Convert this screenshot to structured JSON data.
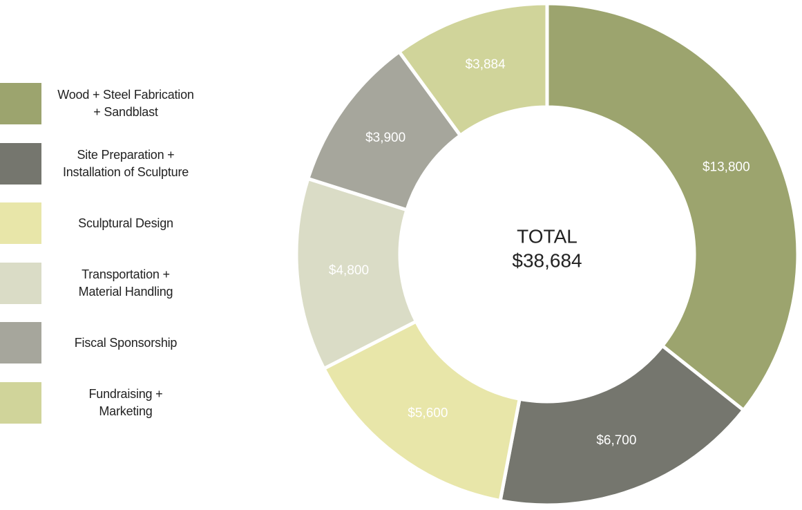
{
  "chart_data": {
    "type": "donut",
    "categories": [
      "Wood + Steel Fabrication\n+ Sandblast",
      "Site Preparation +\nInstallation of Sculpture",
      "Sculptural Design",
      "Transportation +\nMaterial Handling",
      "Fiscal Sponsorship",
      "Fundraising +\nMarketing"
    ],
    "values": [
      13800,
      6700,
      5600,
      4800,
      3900,
      3884
    ],
    "value_labels": [
      "$13,800",
      "$6,700",
      "$5,600",
      "$4,800",
      "$3,900",
      "$3,884"
    ],
    "colors": [
      "#9ca46e",
      "#75766e",
      "#e8e6a9",
      "#dadcc6",
      "#a6a69c",
      "#d0d49a"
    ],
    "center_title": "TOTAL",
    "total": {
      "value": 38684,
      "label": "$38,684"
    },
    "legend": "left"
  }
}
